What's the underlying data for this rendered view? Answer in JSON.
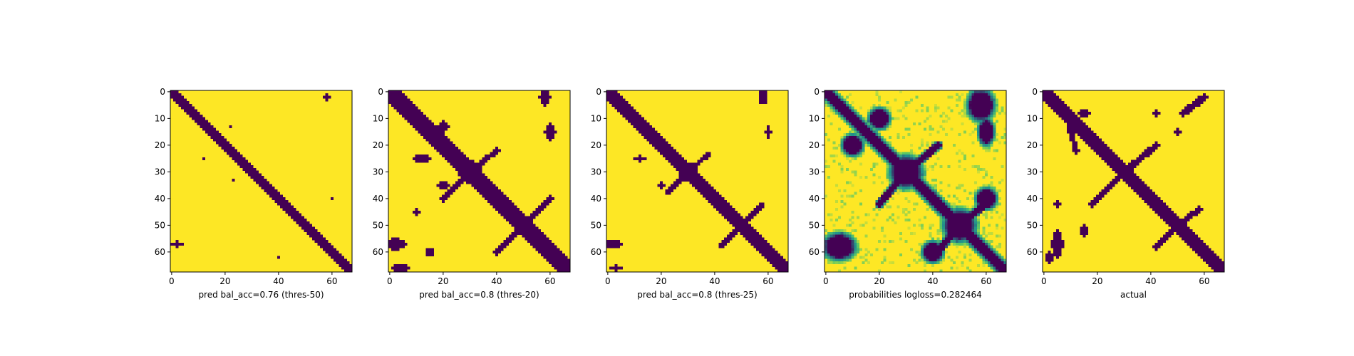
{
  "chart_data": [
    {
      "type": "heatmap",
      "variant": "binary",
      "xlabel": "pred bal_acc=0.76 (thres-50)",
      "xlim": [
        0,
        68
      ],
      "ylim": [
        68,
        0
      ],
      "xticks": [
        0,
        20,
        40,
        60
      ],
      "yticks": [
        0,
        10,
        20,
        30,
        40,
        50,
        60
      ],
      "diagonal_halfwidth": 1.2,
      "blobs": [
        {
          "i": 30,
          "j": 30,
          "rx": 1.5,
          "ry": 1.5
        },
        {
          "i": 52,
          "j": 52,
          "rx": 1.5,
          "ry": 1.5
        },
        {
          "i": 2,
          "j": 58,
          "rx": 1,
          "ry": 1.5
        },
        {
          "i": 57,
          "j": 2,
          "rx": 2,
          "ry": 1
        },
        {
          "i": 25,
          "j": 12,
          "rx": 0.8,
          "ry": 0.8
        },
        {
          "i": 13,
          "j": 22,
          "rx": 0.8,
          "ry": 0.8
        },
        {
          "i": 33,
          "j": 23,
          "rx": 0.8,
          "ry": 0.8
        },
        {
          "i": 40,
          "j": 60,
          "rx": 0.8,
          "ry": 0.8
        },
        {
          "i": 62,
          "j": 40,
          "rx": 0.8,
          "ry": 0.8
        }
      ],
      "arms": []
    },
    {
      "type": "heatmap",
      "variant": "binary",
      "xlabel": "pred bal_acc=0.8 (thres-20)",
      "xlim": [
        0,
        68
      ],
      "ylim": [
        68,
        0
      ],
      "xticks": [
        0,
        20,
        40,
        60
      ],
      "yticks": [
        0,
        10,
        20,
        30,
        40,
        50,
        60
      ],
      "diagonal_halfwidth": 2.6,
      "blobs": [
        {
          "i": 30,
          "j": 30,
          "rx": 4,
          "ry": 4
        },
        {
          "i": 50,
          "j": 50,
          "rx": 3.5,
          "ry": 3.5
        },
        {
          "i": 2,
          "j": 58,
          "rx": 2,
          "ry": 3
        },
        {
          "i": 57,
          "j": 2,
          "rx": 4,
          "ry": 2
        },
        {
          "i": 66,
          "j": 4,
          "rx": 3,
          "ry": 1.5
        },
        {
          "i": 25,
          "j": 12,
          "rx": 3,
          "ry": 1.5
        },
        {
          "i": 13,
          "j": 20,
          "rx": 2,
          "ry": 2
        },
        {
          "i": 35,
          "j": 20,
          "rx": 2,
          "ry": 1.5
        },
        {
          "i": 15,
          "j": 60,
          "rx": 2,
          "ry": 3
        },
        {
          "i": 60,
          "j": 15,
          "rx": 1.5,
          "ry": 1.5
        },
        {
          "i": 45,
          "j": 10,
          "rx": 1,
          "ry": 1
        }
      ],
      "arms": [
        {
          "from": [
            30,
            30
          ],
          "to": [
            22,
            40
          ],
          "w": 1.2
        },
        {
          "from": [
            30,
            30
          ],
          "to": [
            40,
            20
          ],
          "w": 1.2
        },
        {
          "from": [
            50,
            50
          ],
          "to": [
            40,
            60
          ],
          "w": 1.2
        },
        {
          "from": [
            50,
            50
          ],
          "to": [
            60,
            40
          ],
          "w": 1.2
        }
      ]
    },
    {
      "type": "heatmap",
      "variant": "binary",
      "xlabel": "pred bal_acc=0.8 (thres-25)",
      "xlim": [
        0,
        68
      ],
      "ylim": [
        68,
        0
      ],
      "xticks": [
        0,
        20,
        40,
        60
      ],
      "yticks": [
        0,
        10,
        20,
        30,
        40,
        50,
        60
      ],
      "diagonal_halfwidth": 2.4,
      "blobs": [
        {
          "i": 30,
          "j": 30,
          "rx": 3.5,
          "ry": 3.5
        },
        {
          "i": 50,
          "j": 50,
          "rx": 3,
          "ry": 3
        },
        {
          "i": 2,
          "j": 58,
          "rx": 1.5,
          "ry": 2.5
        },
        {
          "i": 57,
          "j": 2,
          "rx": 3.5,
          "ry": 1.5
        },
        {
          "i": 66,
          "j": 3,
          "rx": 2,
          "ry": 1
        },
        {
          "i": 25,
          "j": 12,
          "rx": 2,
          "ry": 1
        },
        {
          "i": 35,
          "j": 20,
          "rx": 1.5,
          "ry": 1
        },
        {
          "i": 15,
          "j": 60,
          "rx": 1,
          "ry": 2.5
        }
      ],
      "arms": [
        {
          "from": [
            30,
            30
          ],
          "to": [
            23,
            38
          ],
          "w": 1
        },
        {
          "from": [
            30,
            30
          ],
          "to": [
            38,
            22
          ],
          "w": 1
        },
        {
          "from": [
            50,
            50
          ],
          "to": [
            42,
            58
          ],
          "w": 1
        },
        {
          "from": [
            50,
            50
          ],
          "to": [
            58,
            42
          ],
          "w": 1
        }
      ]
    },
    {
      "type": "heatmap",
      "variant": "probability",
      "xlabel": "probabilities logloss=0.282464",
      "xlim": [
        0,
        68
      ],
      "ylim": [
        68,
        0
      ],
      "xticks": [
        0,
        20,
        40,
        60
      ],
      "yticks": [
        0,
        10,
        20,
        30,
        40,
        50,
        60
      ],
      "diagonal_halfwidth": 2.2,
      "blobs": [
        {
          "i": 30,
          "j": 30,
          "rx": 6,
          "ry": 6
        },
        {
          "i": 50,
          "j": 50,
          "rx": 6,
          "ry": 6
        },
        {
          "i": 5,
          "j": 58,
          "rx": 5,
          "ry": 6
        },
        {
          "i": 58,
          "j": 5,
          "rx": 6,
          "ry": 5
        },
        {
          "i": 20,
          "j": 10,
          "rx": 4,
          "ry": 4
        },
        {
          "i": 10,
          "j": 20,
          "rx": 4,
          "ry": 4
        },
        {
          "i": 40,
          "j": 60,
          "rx": 4,
          "ry": 4
        },
        {
          "i": 60,
          "j": 40,
          "rx": 4,
          "ry": 4
        },
        {
          "i": 15,
          "j": 60,
          "rx": 3,
          "ry": 5
        }
      ],
      "arms": [
        {
          "from": [
            30,
            30
          ],
          "to": [
            20,
            42
          ],
          "w": 2
        },
        {
          "from": [
            30,
            30
          ],
          "to": [
            42,
            20
          ],
          "w": 2
        },
        {
          "from": [
            50,
            50
          ],
          "to": [
            40,
            62
          ],
          "w": 2
        },
        {
          "from": [
            50,
            50
          ],
          "to": [
            62,
            40
          ],
          "w": 2
        }
      ]
    },
    {
      "type": "heatmap",
      "variant": "binary",
      "xlabel": "actual",
      "xlim": [
        0,
        68
      ],
      "ylim": [
        68,
        0
      ],
      "xticks": [
        0,
        20,
        40,
        60
      ],
      "yticks": [
        0,
        10,
        20,
        30,
        40,
        50,
        60
      ],
      "diagonal_halfwidth": 2.0,
      "blobs": [
        {
          "i": 30,
          "j": 30,
          "rx": 3,
          "ry": 3
        },
        {
          "i": 50,
          "j": 50,
          "rx": 2.5,
          "ry": 2.5
        },
        {
          "i": 8,
          "j": 15,
          "rx": 2,
          "ry": 1.5
        },
        {
          "i": 8,
          "j": 42,
          "rx": 1.5,
          "ry": 1.2
        },
        {
          "i": 15,
          "j": 50,
          "rx": 1.5,
          "ry": 1.2
        },
        {
          "i": 57,
          "j": 5,
          "rx": 2,
          "ry": 5
        },
        {
          "i": 52,
          "j": 15,
          "rx": 1.5,
          "ry": 2
        },
        {
          "i": 62,
          "j": 2,
          "rx": 1.5,
          "ry": 2
        },
        {
          "i": 42,
          "j": 5,
          "rx": 1,
          "ry": 1
        }
      ],
      "arms": [
        {
          "from": [
            30,
            30
          ],
          "to": [
            20,
            42
          ],
          "w": 1.5
        },
        {
          "from": [
            30,
            30
          ],
          "to": [
            42,
            18
          ],
          "w": 1.5
        },
        {
          "from": [
            50,
            50
          ],
          "to": [
            44,
            58
          ],
          "w": 1.2
        },
        {
          "from": [
            50,
            50
          ],
          "to": [
            58,
            42
          ],
          "w": 1.2
        },
        {
          "from": [
            2,
            60
          ],
          "to": [
            8,
            52
          ],
          "w": 1.5
        },
        {
          "from": [
            8,
            8
          ],
          "to": [
            22,
            12
          ],
          "w": 1.2
        }
      ]
    }
  ],
  "colors": {
    "low": "#440154",
    "mid": "#21918c",
    "midlight": "#5ec962",
    "high": "#fde725"
  }
}
